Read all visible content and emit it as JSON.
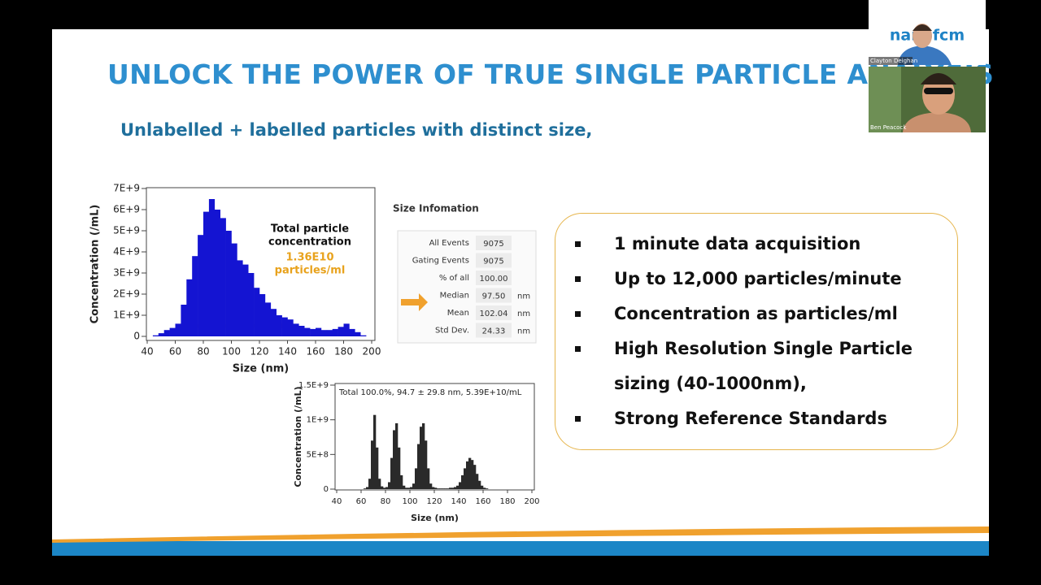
{
  "slide": {
    "title": "UNLOCK THE POWER OF TRUE SINGLE PARTICLE ANALYSIS",
    "subtitle": "Unlabelled + labelled particles with distinct size,"
  },
  "size_table": {
    "title": "Size Infomation",
    "rows": [
      {
        "label": "All Events",
        "value": "9075"
      },
      {
        "label": "Gating Events",
        "value": "9075"
      },
      {
        "label": "% of all",
        "value": "100.00"
      },
      {
        "label": "Median",
        "value": "97.50",
        "unit": "nm"
      },
      {
        "label": "Mean",
        "value": "102.04",
        "unit": "nm"
      },
      {
        "label": "Std Dev.",
        "value": "24.33",
        "unit": "nm"
      }
    ]
  },
  "bullets": [
    "1 minute data acquisition",
    "Up to 12,000 particles/minute",
    "Concentration as particles/ml",
    "High Resolution Single Particle sizing (40-1000nm),",
    "Strong Reference Standards"
  ],
  "video": {
    "logo": "nanofcm",
    "participants": [
      "Clayton Deighan",
      "Ben Peacock"
    ]
  },
  "chart_data": [
    {
      "type": "histogram",
      "xlabel": "Size (nm)",
      "ylabel": "Concentration (/mL)",
      "annotation": [
        "Total particle",
        "concentration"
      ],
      "annotation_value": [
        "1.36E10",
        "particles/ml"
      ],
      "color": "#1414d2",
      "bins": [
        44,
        48,
        52,
        56,
        60,
        64,
        68,
        72,
        76,
        80,
        84,
        88,
        92,
        96,
        100,
        104,
        108,
        112,
        116,
        120,
        124,
        128,
        132,
        136,
        140,
        144,
        148,
        152,
        156,
        160,
        164,
        168,
        172,
        176,
        180,
        184,
        188,
        192,
        196
      ],
      "values": [
        50000000.0,
        150000000.0,
        300000000.0,
        400000000.0,
        600000000.0,
        1500000000.0,
        2700000000.0,
        3800000000.0,
        4800000000.0,
        5900000000.0,
        6500000000.0,
        6000000000.0,
        5600000000.0,
        5000000000.0,
        4400000000.0,
        3600000000.0,
        3400000000.0,
        3000000000.0,
        2300000000.0,
        2000000000.0,
        1600000000.0,
        1300000000.0,
        1000000000.0,
        900000000.0,
        800000000.0,
        600000000.0,
        500000000.0,
        400000000.0,
        350000000.0,
        400000000.0,
        300000000.0,
        300000000.0,
        350000000.0,
        450000000.0,
        600000000.0,
        350000000.0,
        200000000.0,
        50000000.0
      ],
      "xlim": [
        40,
        200
      ],
      "xticks": [
        40,
        60,
        80,
        100,
        120,
        140,
        160,
        180,
        200
      ],
      "ylim": [
        0,
        7000000000.0
      ],
      "yticks": [
        0,
        {
          "value": 1000000000.0,
          "label": "1E+9"
        },
        {
          "value": 2000000000.0,
          "label": "2E+9"
        },
        {
          "value": 3000000000.0,
          "label": "3E+9"
        },
        {
          "value": 4000000000.0,
          "label": "4E+9"
        },
        {
          "value": 5000000000.0,
          "label": "5E+9"
        },
        {
          "value": 6000000000.0,
          "label": "6E+9"
        },
        {
          "value": 7000000000.0,
          "label": "7E+9"
        }
      ]
    },
    {
      "type": "histogram",
      "xlabel": "Size (nm)",
      "ylabel": "Concentration (/mL)",
      "annotation": [
        "Total  100.0%,  94.7 ± 29.8 nm,  5.39E+10/mL"
      ],
      "color": "#2a2a2a",
      "bins": [
        62,
        64,
        66,
        68,
        70,
        72,
        74,
        76,
        78,
        80,
        82,
        84,
        86,
        88,
        90,
        92,
        94,
        96,
        98,
        100,
        102,
        104,
        106,
        108,
        110,
        112,
        114,
        116,
        118,
        120,
        122,
        124,
        126,
        128,
        130,
        132,
        134,
        136,
        138,
        140,
        142,
        144,
        146,
        148,
        150,
        152,
        154,
        156,
        158,
        160,
        162,
        164
      ],
      "values": [
        10000000.0,
        30000000.0,
        150000000.0,
        700000000.0,
        1070000000.0,
        600000000.0,
        150000000.0,
        40000000.0,
        20000000.0,
        30000000.0,
        100000000.0,
        450000000.0,
        850000000.0,
        950000000.0,
        600000000.0,
        200000000.0,
        50000000.0,
        20000000.0,
        20000000.0,
        30000000.0,
        80000000.0,
        300000000.0,
        650000000.0,
        900000000.0,
        950000000.0,
        700000000.0,
        300000000.0,
        80000000.0,
        30000000.0,
        20000000.0,
        10000000.0,
        10000000.0,
        10000000.0,
        10000000.0,
        10000000.0,
        20000000.0,
        20000000.0,
        30000000.0,
        50000000.0,
        100000000.0,
        200000000.0,
        300000000.0,
        400000000.0,
        450000000.0,
        420000000.0,
        350000000.0,
        220000000.0,
        120000000.0,
        50000000.0,
        20000000.0,
        10000000.0
      ],
      "xlim": [
        40,
        200
      ],
      "xticks": [
        40,
        60,
        80,
        100,
        120,
        140,
        160,
        180,
        200
      ],
      "ylim": [
        0,
        1500000000.0
      ],
      "yticks": [
        0,
        {
          "value": 500000000.0,
          "label": "5E+8"
        },
        {
          "value": 1000000000.0,
          "label": "1E+9"
        },
        {
          "value": 1500000000.0,
          "label": "1.5E+9"
        }
      ]
    }
  ]
}
